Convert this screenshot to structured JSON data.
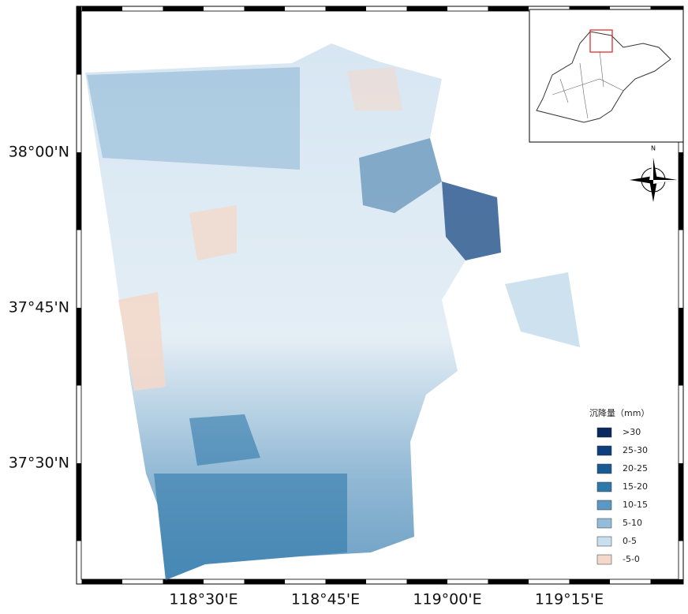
{
  "map": {
    "x_labels": [
      "118°30'E",
      "118°45'E",
      "119°00'E",
      "119°15'E"
    ],
    "y_labels": [
      "38°00'N",
      "37°45'N",
      "37°30'N"
    ],
    "north_label": "N",
    "legend": {
      "title": "沉降量（mm）",
      "items": [
        {
          "label": ">30",
          "color": "#08285f"
        },
        {
          "label": "25-30",
          "color": "#0d3f7c"
        },
        {
          "label": "20-25",
          "color": "#175b92"
        },
        {
          "label": "15-20",
          "color": "#2e78aa"
        },
        {
          "label": "10-15",
          "color": "#5b98c2"
        },
        {
          "label": "5-10",
          "color": "#93bcda"
        },
        {
          "label": "0-5",
          "color": "#c9deee"
        },
        {
          "label": "-5-0",
          "color": "#f3d8cb"
        }
      ]
    }
  }
}
